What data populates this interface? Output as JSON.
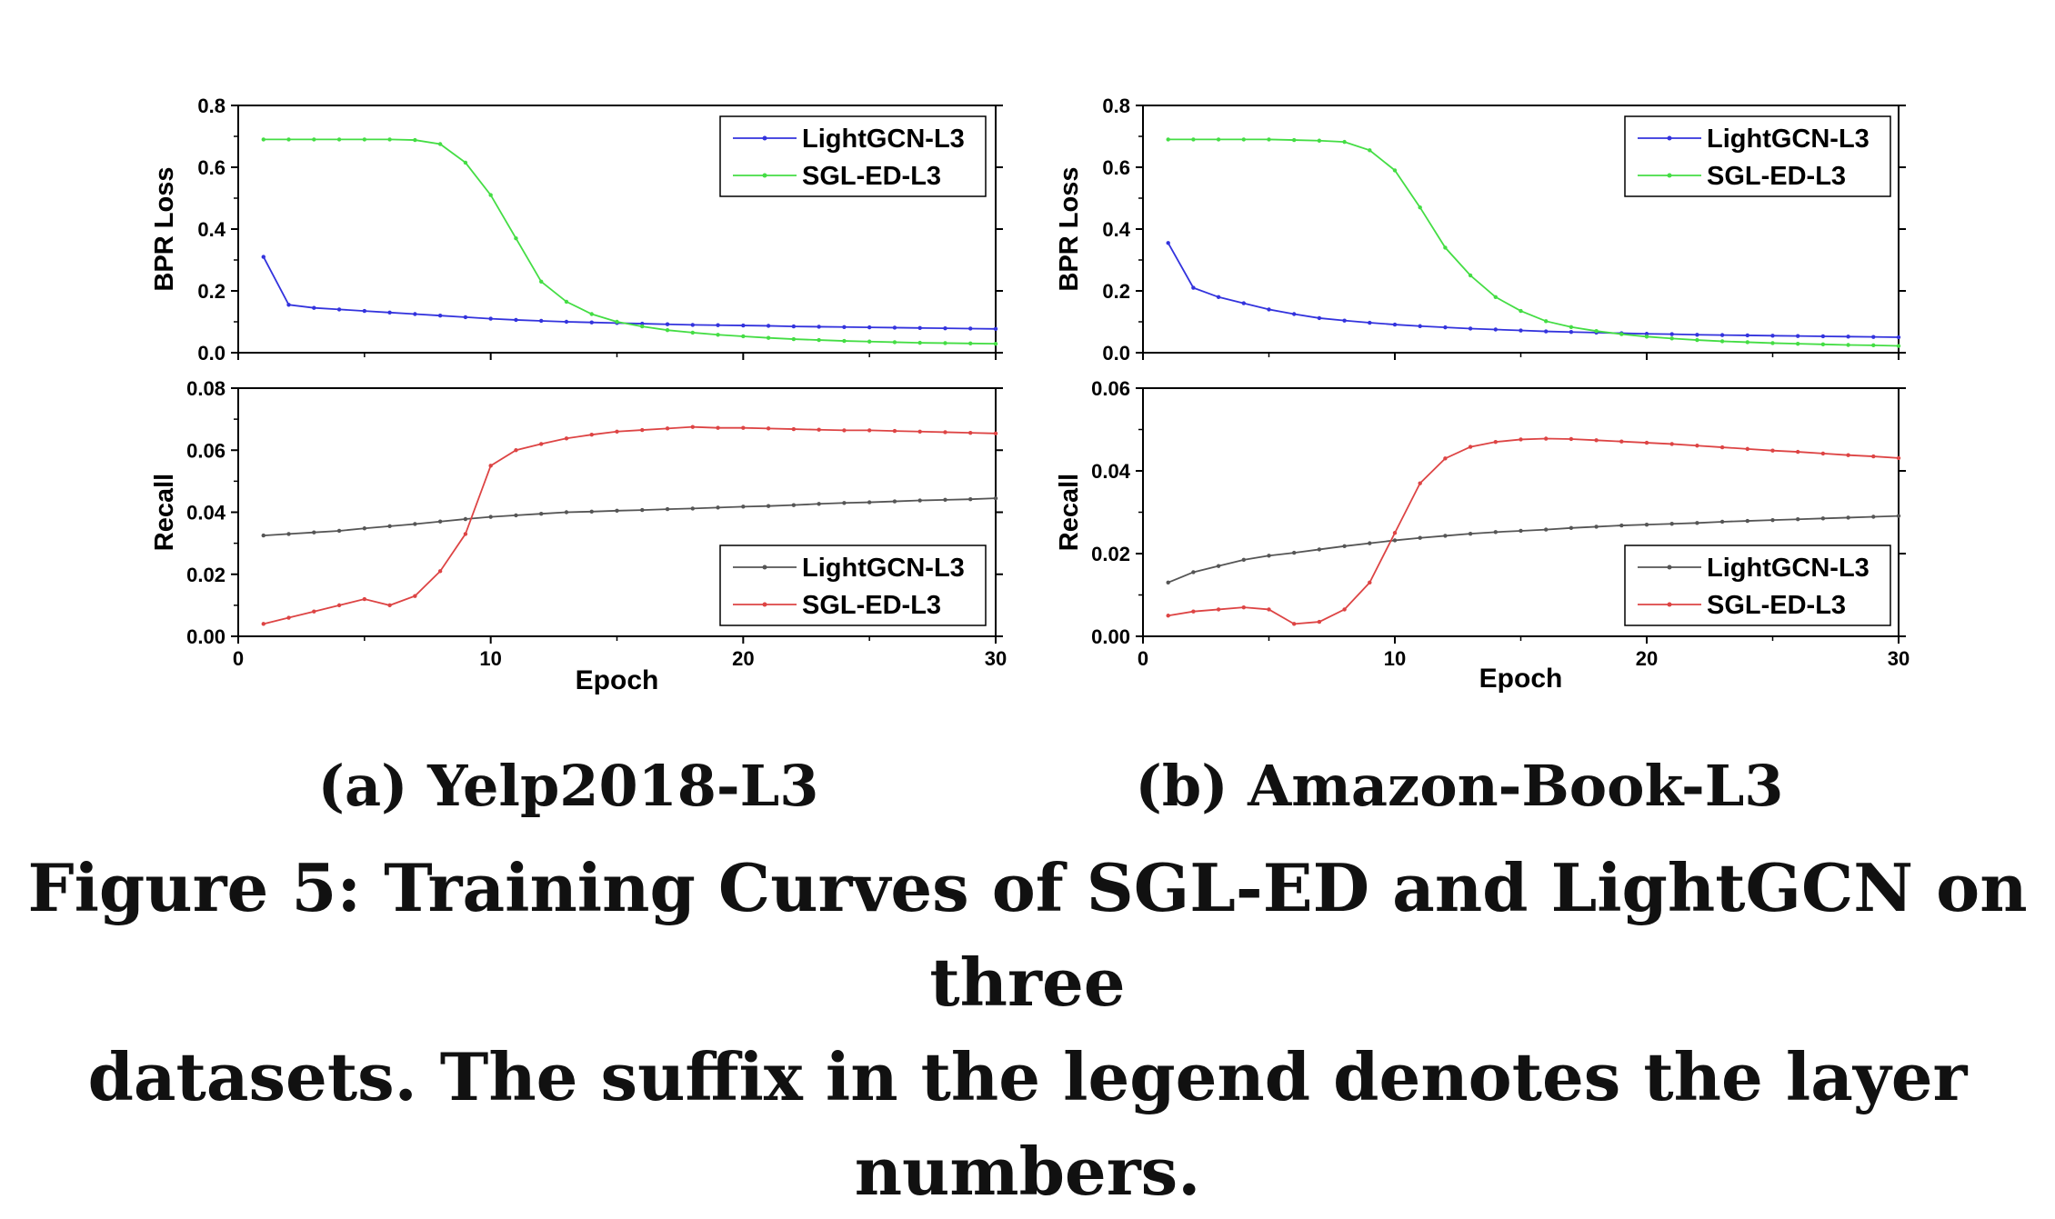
{
  "figure": {
    "subcaptions": [
      "(a) Yelp2018-L3",
      "(b) Amazon-Book-L3"
    ],
    "caption_line1": "Figure 5: Training Curves of SGL-ED and LightGCN on three",
    "caption_line2": "datasets. The suffix in the legend denotes the layer numbers."
  },
  "chart_data": [
    {
      "type": "line",
      "panel": "Yelp2018-L3 top",
      "title": "",
      "xlabel": "",
      "ylabel": "BPR Loss",
      "xlim": [
        0,
        30
      ],
      "ylim": [
        0,
        0.8
      ],
      "xticks": [
        0,
        10,
        20,
        30
      ],
      "yticks": [
        "0.0",
        "0.2",
        "0.4",
        "0.6",
        "0.8"
      ],
      "legend_position": "top-right",
      "x": [
        1,
        2,
        3,
        4,
        5,
        6,
        7,
        8,
        9,
        10,
        11,
        12,
        13,
        14,
        15,
        16,
        17,
        18,
        19,
        20,
        21,
        22,
        23,
        24,
        25,
        26,
        27,
        28,
        29,
        30
      ],
      "series": [
        {
          "name": "LightGCN-L3",
          "color": "#3333dd",
          "values": [
            0.31,
            0.155,
            0.145,
            0.14,
            0.135,
            0.13,
            0.125,
            0.12,
            0.115,
            0.11,
            0.106,
            0.103,
            0.1,
            0.098,
            0.096,
            0.094,
            0.092,
            0.09,
            0.089,
            0.088,
            0.087,
            0.085,
            0.084,
            0.083,
            0.082,
            0.081,
            0.08,
            0.079,
            0.078,
            0.077
          ]
        },
        {
          "name": "SGL-ED-L3",
          "color": "#44dd44",
          "values": [
            0.69,
            0.69,
            0.69,
            0.69,
            0.69,
            0.69,
            0.688,
            0.675,
            0.615,
            0.51,
            0.37,
            0.23,
            0.165,
            0.125,
            0.1,
            0.085,
            0.073,
            0.065,
            0.058,
            0.053,
            0.048,
            0.044,
            0.041,
            0.038,
            0.036,
            0.034,
            0.032,
            0.031,
            0.03,
            0.029
          ]
        }
      ]
    },
    {
      "type": "line",
      "panel": "Yelp2018-L3 bottom",
      "title": "",
      "xlabel": "Epoch",
      "ylabel": "Recall",
      "xlim": [
        0,
        30
      ],
      "ylim": [
        0,
        0.08
      ],
      "xticks": [
        0,
        10,
        20,
        30
      ],
      "yticks": [
        "0.00",
        "0.02",
        "0.04",
        "0.06",
        "0.08"
      ],
      "legend_position": "bottom-right",
      "x": [
        1,
        2,
        3,
        4,
        5,
        6,
        7,
        8,
        9,
        10,
        11,
        12,
        13,
        14,
        15,
        16,
        17,
        18,
        19,
        20,
        21,
        22,
        23,
        24,
        25,
        26,
        27,
        28,
        29,
        30
      ],
      "series": [
        {
          "name": "LightGCN-L3",
          "color": "#555555",
          "values": [
            0.0325,
            0.033,
            0.0335,
            0.034,
            0.0348,
            0.0355,
            0.0362,
            0.037,
            0.0378,
            0.0385,
            0.039,
            0.0395,
            0.04,
            0.0402,
            0.0405,
            0.0407,
            0.041,
            0.0412,
            0.0415,
            0.0418,
            0.042,
            0.0423,
            0.0427,
            0.043,
            0.0432,
            0.0435,
            0.0438,
            0.044,
            0.0442,
            0.0445
          ]
        },
        {
          "name": "SGL-ED-L3",
          "color": "#dd4444",
          "values": [
            0.004,
            0.006,
            0.008,
            0.01,
            0.012,
            0.01,
            0.013,
            0.021,
            0.033,
            0.055,
            0.06,
            0.062,
            0.0638,
            0.065,
            0.066,
            0.0665,
            0.067,
            0.0675,
            0.0672,
            0.0672,
            0.067,
            0.0668,
            0.0666,
            0.0664,
            0.0664,
            0.0662,
            0.066,
            0.0658,
            0.0656,
            0.0654
          ]
        }
      ]
    },
    {
      "type": "line",
      "panel": "Amazon-Book-L3 top",
      "title": "",
      "xlabel": "",
      "ylabel": "BPR Loss",
      "xlim": [
        0,
        30
      ],
      "ylim": [
        0,
        0.8
      ],
      "xticks": [
        0,
        10,
        20,
        30
      ],
      "yticks": [
        "0.0",
        "0.2",
        "0.4",
        "0.6",
        "0.8"
      ],
      "legend_position": "top-right",
      "x": [
        1,
        2,
        3,
        4,
        5,
        6,
        7,
        8,
        9,
        10,
        11,
        12,
        13,
        14,
        15,
        16,
        17,
        18,
        19,
        20,
        21,
        22,
        23,
        24,
        25,
        26,
        27,
        28,
        29,
        30
      ],
      "series": [
        {
          "name": "LightGCN-L3",
          "color": "#3333dd",
          "values": [
            0.355,
            0.21,
            0.18,
            0.16,
            0.14,
            0.125,
            0.112,
            0.104,
            0.097,
            0.091,
            0.086,
            0.082,
            0.078,
            0.075,
            0.072,
            0.069,
            0.067,
            0.065,
            0.063,
            0.061,
            0.06,
            0.058,
            0.057,
            0.056,
            0.055,
            0.054,
            0.053,
            0.052,
            0.051,
            0.05
          ]
        },
        {
          "name": "SGL-ED-L3",
          "color": "#44dd44",
          "values": [
            0.69,
            0.69,
            0.69,
            0.69,
            0.69,
            0.688,
            0.686,
            0.682,
            0.655,
            0.59,
            0.47,
            0.34,
            0.25,
            0.18,
            0.135,
            0.102,
            0.083,
            0.07,
            0.06,
            0.052,
            0.046,
            0.041,
            0.037,
            0.034,
            0.031,
            0.029,
            0.027,
            0.025,
            0.024,
            0.022
          ]
        }
      ]
    },
    {
      "type": "line",
      "panel": "Amazon-Book-L3 bottom",
      "title": "",
      "xlabel": "Epoch",
      "ylabel": "Recall",
      "xlim": [
        0,
        30
      ],
      "ylim": [
        0,
        0.06
      ],
      "xticks": [
        0,
        10,
        20,
        30
      ],
      "yticks": [
        "0.00",
        "0.02",
        "0.04",
        "0.06"
      ],
      "legend_position": "bottom-right",
      "x": [
        1,
        2,
        3,
        4,
        5,
        6,
        7,
        8,
        9,
        10,
        11,
        12,
        13,
        14,
        15,
        16,
        17,
        18,
        19,
        20,
        21,
        22,
        23,
        24,
        25,
        26,
        27,
        28,
        29,
        30
      ],
      "series": [
        {
          "name": "LightGCN-L3",
          "color": "#555555",
          "values": [
            0.013,
            0.0155,
            0.017,
            0.0185,
            0.0195,
            0.0202,
            0.021,
            0.0218,
            0.0225,
            0.0232,
            0.0238,
            0.0243,
            0.0248,
            0.0252,
            0.0255,
            0.0258,
            0.0262,
            0.0265,
            0.0268,
            0.027,
            0.0272,
            0.0274,
            0.0277,
            0.0279,
            0.0281,
            0.0283,
            0.0285,
            0.0287,
            0.0289,
            0.0291
          ]
        },
        {
          "name": "SGL-ED-L3",
          "color": "#dd4444",
          "values": [
            0.005,
            0.006,
            0.0065,
            0.007,
            0.0065,
            0.003,
            0.0035,
            0.0065,
            0.013,
            0.025,
            0.037,
            0.043,
            0.0458,
            0.047,
            0.0476,
            0.0478,
            0.0477,
            0.0474,
            0.0471,
            0.0468,
            0.0465,
            0.0461,
            0.0457,
            0.0453,
            0.0449,
            0.0446,
            0.0442,
            0.0438,
            0.0435,
            0.0431
          ]
        }
      ]
    }
  ]
}
